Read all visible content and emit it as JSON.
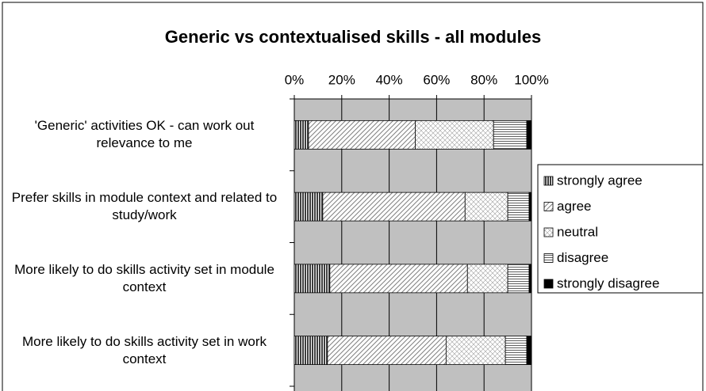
{
  "chart_data": {
    "type": "stacked-bar-horizontal",
    "title": "Generic vs contextualised skills - all modules",
    "categories": [
      "'Generic' activities OK - can work out relevance to me",
      "Prefer skills in module context and related to study/work",
      "More likely to do skills activity set in module context",
      "More likely to do skills activity set in work context"
    ],
    "series": [
      {
        "name": "strongly agree",
        "color": "#404040",
        "pattern": "vertical",
        "values": [
          6,
          12,
          15,
          14
        ]
      },
      {
        "name": "agree",
        "color": "#808080",
        "pattern": "diagonal",
        "values": [
          45,
          60,
          58,
          50
        ]
      },
      {
        "name": "neutral",
        "color": "#a0a0a0",
        "pattern": "crosshatch",
        "values": [
          33,
          18,
          17,
          25
        ]
      },
      {
        "name": "disagree",
        "color": "#606060",
        "pattern": "horizontal",
        "values": [
          14,
          9,
          9,
          9
        ]
      },
      {
        "name": "strongly disagree",
        "color": "#000000",
        "pattern": "solid",
        "values": [
          2,
          1,
          1,
          2
        ]
      }
    ],
    "xlim": [
      0,
      100
    ],
    "xticks": [
      {
        "value": 0,
        "label": "0%"
      },
      {
        "value": 20,
        "label": "20%"
      },
      {
        "value": 40,
        "label": "40%"
      },
      {
        "value": 60,
        "label": "60%"
      },
      {
        "value": 80,
        "label": "80%"
      },
      {
        "value": 100,
        "label": "100%"
      }
    ],
    "grid": true,
    "legend": "right"
  }
}
